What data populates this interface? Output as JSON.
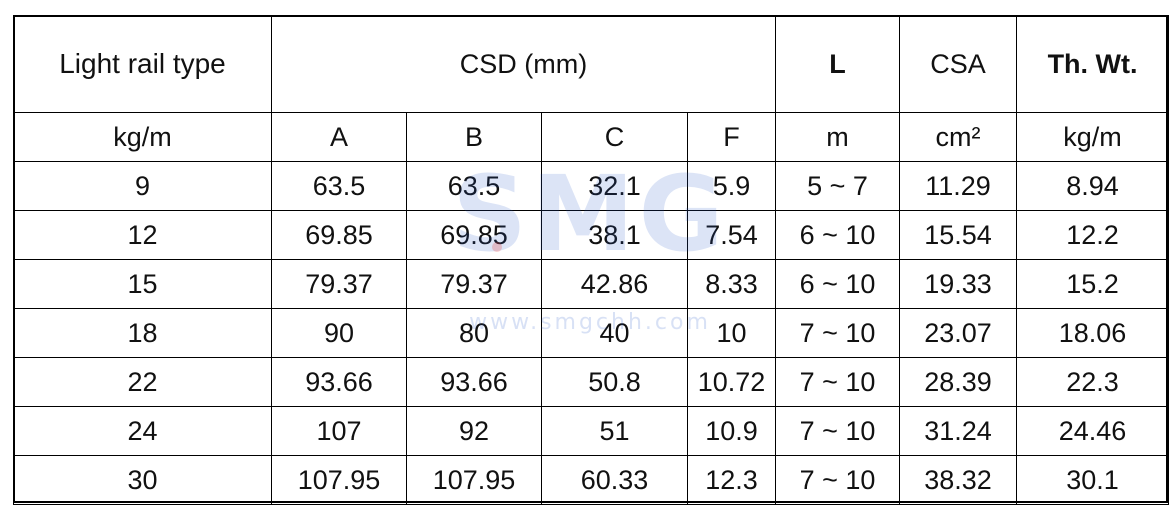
{
  "table": {
    "header_row1": {
      "type_label": "Light rail type",
      "csd_label": "CSD (mm)",
      "l_label": "L",
      "csa_label": "CSA",
      "weight_label": "Th. Wt."
    },
    "header_row2": {
      "type_unit": "kg/m",
      "col_a": "A",
      "col_b": "B",
      "col_c": "C",
      "col_f": "F",
      "l_unit": "m",
      "csa_unit": "cm²",
      "weight_unit": "kg/m"
    },
    "rows": [
      {
        "type": "9",
        "a": "63.5",
        "b": "63.5",
        "c": "32.1",
        "f": "5.9",
        "l": "5 ~ 7",
        "csa": "11.29",
        "wt": "8.94"
      },
      {
        "type": "12",
        "a": "69.85",
        "b": "69.85",
        "c": "38.1",
        "f": "7.54",
        "l": "6 ~ 10",
        "csa": "15.54",
        "wt": "12.2"
      },
      {
        "type": "15",
        "a": "79.37",
        "b": "79.37",
        "c": "42.86",
        "f": "8.33",
        "l": "6 ~ 10",
        "csa": "19.33",
        "wt": "15.2"
      },
      {
        "type": "18",
        "a": "90",
        "b": "80",
        "c": "40",
        "f": "10",
        "l": "7 ~ 10",
        "csa": "23.07",
        "wt": "18.06"
      },
      {
        "type": "22",
        "a": "93.66",
        "b": "93.66",
        "c": "50.8",
        "f": "10.72",
        "l": "7 ~ 10",
        "csa": "28.39",
        "wt": "22.3"
      },
      {
        "type": "24",
        "a": "107",
        "b": "92",
        "c": "51",
        "f": "10.9",
        "l": "7 ~ 10",
        "csa": "31.24",
        "wt": "24.46"
      },
      {
        "type": "30",
        "a": "107.95",
        "b": "107.95",
        "c": "60.33",
        "f": "12.3",
        "l": "7 ~ 10",
        "csa": "38.32",
        "wt": "30.1"
      }
    ]
  },
  "watermark": {
    "logo_text": "SMG",
    "url_text": "www.smgchh.com"
  }
}
